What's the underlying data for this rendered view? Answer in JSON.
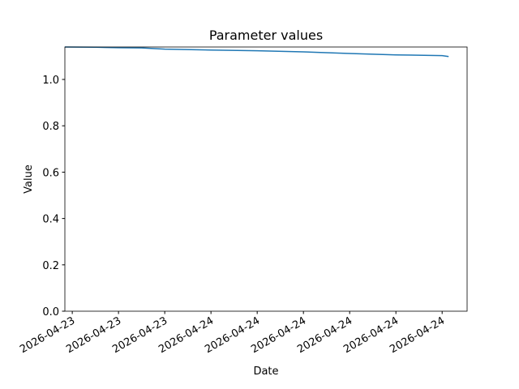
{
  "chart_data": {
    "type": "line",
    "title": "Parameter values",
    "x_label": "Date",
    "y_label": "Value",
    "x": [
      -0.16,
      0.5,
      1,
      1.5,
      2,
      3,
      4,
      5,
      6,
      7,
      8,
      8.14
    ],
    "series": [
      {
        "name": "Value",
        "color": "#1f77b4",
        "values": [
          1.14,
          1.139,
          1.137,
          1.136,
          1.131,
          1.127,
          1.124,
          1.119,
          1.112,
          1.106,
          1.103,
          1.099
        ]
      }
    ],
    "xlim": [
      -0.16,
      8.54
    ],
    "xticks": [
      {
        "value": 0,
        "label": "2026-04-23"
      },
      {
        "value": 1,
        "label": "2026-04-23"
      },
      {
        "value": 2,
        "label": "2026-04-23"
      },
      {
        "value": 3,
        "label": "2026-04-24"
      },
      {
        "value": 4,
        "label": "2026-04-24"
      },
      {
        "value": 5,
        "label": "2026-04-24"
      },
      {
        "value": 6,
        "label": "2026-04-24"
      },
      {
        "value": 7,
        "label": "2026-04-24"
      },
      {
        "value": 8,
        "label": "2026-04-24"
      }
    ],
    "ylim": [
      0,
      1.14
    ],
    "yticks": [
      {
        "value": 0,
        "label": "0.0"
      },
      0.2,
      0.4,
      0.6,
      0.8,
      {
        "value": 1,
        "label": "1.0"
      }
    ]
  }
}
